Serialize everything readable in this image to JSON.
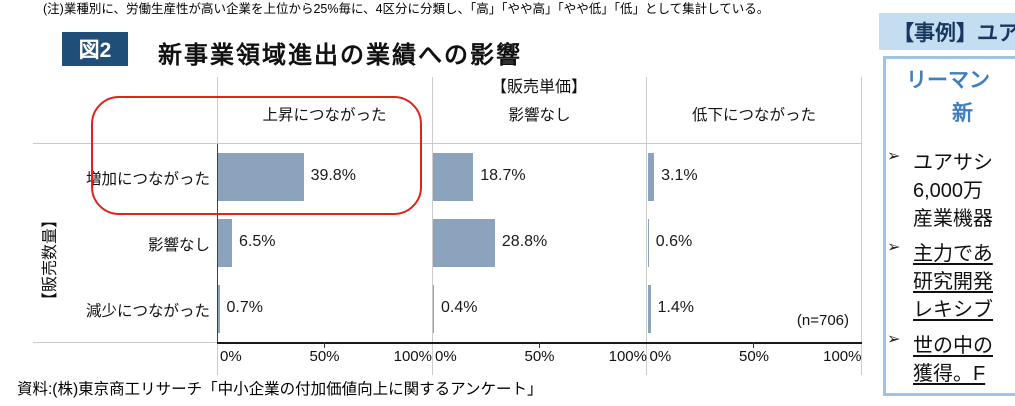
{
  "note": "(注)業種別に、労働生産性が高い企業を上位から25%毎に、4区分に分類し、「高」「やや高」「やや低」「低」として集計している。",
  "figure": {
    "badge": "図2",
    "title": "新事業領域進出の業績への影響"
  },
  "source": "資料:(株)東京商工リサーチ「中小企業の付加価値向上に関するアンケート」",
  "chart_data": {
    "type": "bar",
    "orientation": "horizontal",
    "group_axis_title": "【販売単価】",
    "row_axis_title": "【販売数量】",
    "columns": [
      "上昇につながった",
      "影響なし",
      "低下につながった"
    ],
    "rows": [
      "増加につながった",
      "影響なし",
      "減少につながった"
    ],
    "values": [
      [
        39.8,
        18.7,
        3.1
      ],
      [
        6.5,
        28.8,
        0.6
      ],
      [
        0.7,
        0.4,
        1.4
      ]
    ],
    "value_labels": [
      [
        "39.8%",
        "18.7%",
        "3.1%"
      ],
      [
        "6.5%",
        "28.8%",
        "0.6%"
      ],
      [
        "0.7%",
        "0.4%",
        "1.4%"
      ]
    ],
    "x_ticks": [
      "0%",
      "50%",
      "100%"
    ],
    "xlim": [
      0,
      100
    ],
    "n_label": "(n=706)",
    "bar_color": "#8CA3BD",
    "grid": "panel separators only, no inner gridlines",
    "legend": "none",
    "annotation": "red rounded rectangle highlighting 上昇につながった column header and the 増加につながった row bar (39.8%)"
  },
  "case_panel": {
    "band_title": "【事例】ユア",
    "heading_line1": "リーマン",
    "heading_line2": "新",
    "bullet_marker": "➢",
    "bullets": [
      {
        "lines": [
          "ユアサシ",
          "6,000万",
          "産業機器"
        ],
        "underline": false
      },
      {
        "lines": [
          "主力であ",
          "研究開発",
          "レキシブ"
        ],
        "underline": true
      },
      {
        "lines": [
          "世の中の",
          "獲得。F"
        ],
        "underline": true
      }
    ],
    "colors": {
      "band_bg": "#C5DDF1",
      "band_text": "#17375E",
      "box_border": "#9DC3E6",
      "heading_text": "#3F7EBF"
    }
  }
}
